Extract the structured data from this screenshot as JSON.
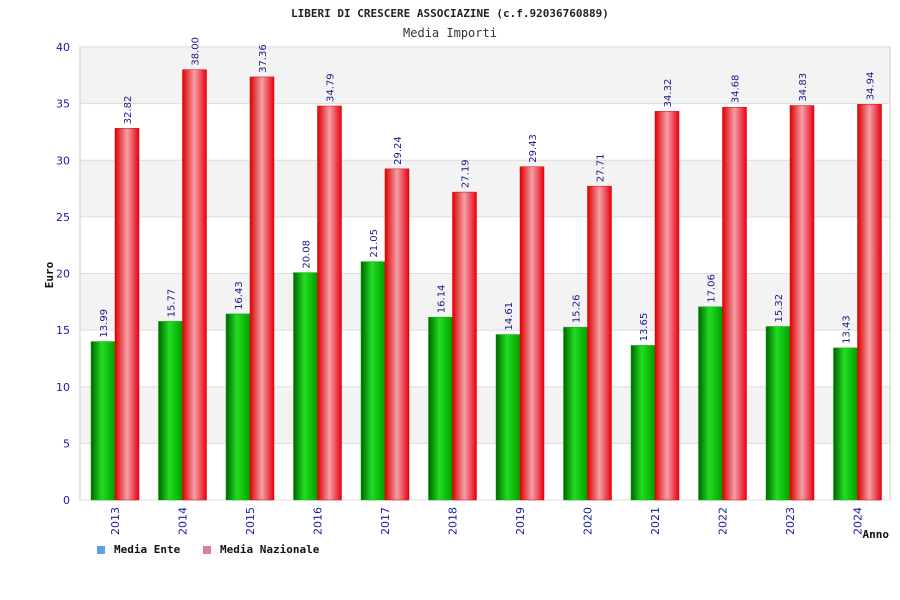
{
  "chart_data": {
    "type": "bar",
    "title": "LIBERI DI CRESCERE ASSOCIAZINE (c.f.92036760889)",
    "subtitle": "Media Importi",
    "xlabel": "Anno",
    "ylabel": "Euro",
    "ylim": [
      0,
      40
    ],
    "yticks": [
      0,
      5,
      10,
      15,
      20,
      25,
      30,
      35,
      40
    ],
    "grid": true,
    "legend_position": "bottom-left",
    "categories": [
      "2013",
      "2014",
      "2015",
      "2016",
      "2017",
      "2018",
      "2019",
      "2020",
      "2021",
      "2022",
      "2023",
      "2024"
    ],
    "series": [
      {
        "name": "Media Ente",
        "color": "#00aa00",
        "legend_color": "#5aa0e0",
        "values": [
          13.99,
          15.77,
          16.43,
          20.08,
          21.05,
          16.14,
          14.61,
          15.26,
          13.65,
          17.06,
          15.32,
          13.43
        ],
        "labels": [
          "13.99",
          "15.77",
          "16.43",
          "20.08",
          "21.05",
          "16.14",
          "14.61",
          "15.26",
          "13.65",
          "17.06",
          "15.32",
          "13.43"
        ]
      },
      {
        "name": "Media Nazionale",
        "color": "#ee1111",
        "legend_color": "#e07aa8",
        "values": [
          32.82,
          38.0,
          37.36,
          34.79,
          29.24,
          27.19,
          29.43,
          27.71,
          34.32,
          34.68,
          34.83,
          34.94
        ],
        "labels": [
          "32.82",
          "38.00",
          "37.36",
          "34.79",
          "29.24",
          "27.19",
          "29.43",
          "27.71",
          "34.32",
          "34.68",
          "34.83",
          "34.94"
        ]
      }
    ]
  }
}
